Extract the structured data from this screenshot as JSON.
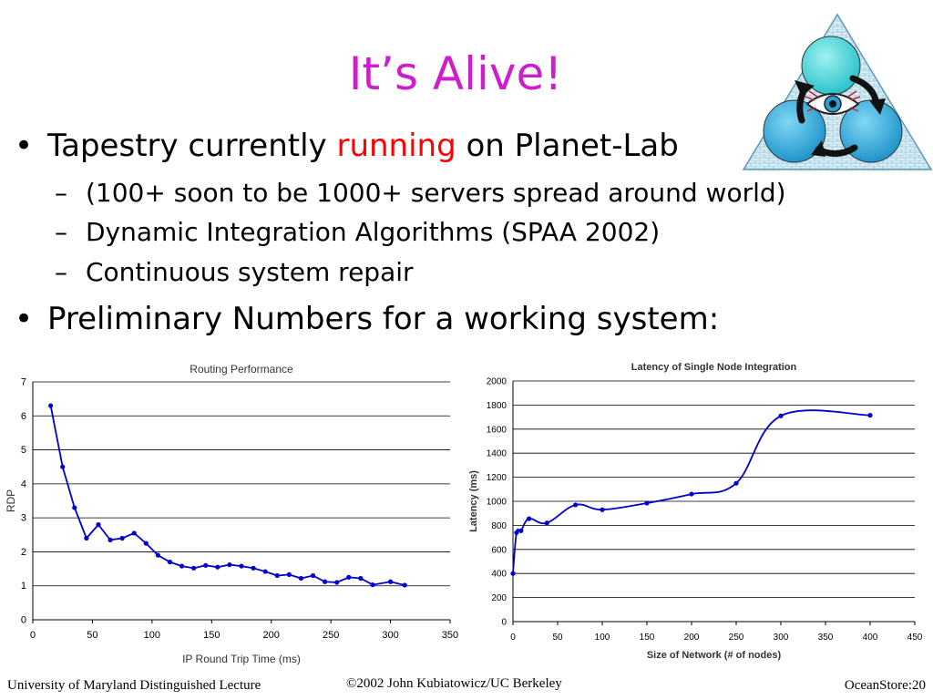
{
  "slide": {
    "title": "It’s Alive!",
    "bullets": [
      {
        "pre": "Tapestry currently ",
        "highlight": "running",
        "post": " on Planet-Lab"
      },
      {
        "text": "Preliminary Numbers for a working system:"
      }
    ],
    "subbullets": [
      "(100+ soon to be 1000+ servers spread around world)",
      "Dynamic Integration Algorithms (SPAA 2002)",
      "Continuous system repair"
    ],
    "bullet_glyph": "•",
    "dash_glyph": "–"
  },
  "colors": {
    "title": "#cc1fcc",
    "highlight": "#ff0000",
    "series": "#0000cc",
    "logo_circle": "#2a9fd6",
    "logo_top_circle": "#3ad0d0"
  },
  "logo": {
    "icon": "eye-triangle-logo"
  },
  "footer": {
    "left": "University of Maryland Distinguished Lecture",
    "center": "©2002 John Kubiatowicz/UC Berkeley",
    "right": "OceanStore:20"
  },
  "chart_data": [
    {
      "type": "line",
      "title": "Routing Performance",
      "xlabel": "IP Round Trip Time (ms)",
      "ylabel": "RDP",
      "xlim": [
        0,
        350
      ],
      "ylim": [
        0,
        7
      ],
      "xticks": [
        0,
        50,
        100,
        150,
        200,
        250,
        300,
        350
      ],
      "yticks": [
        0,
        1,
        2,
        3,
        4,
        5,
        6,
        7
      ],
      "grid": "horizontal",
      "smooth": false,
      "series": [
        {
          "x": [
            15,
            25,
            35,
            45,
            55,
            65,
            75,
            85,
            95,
            105,
            115,
            125,
            135,
            145,
            155,
            165,
            175,
            185,
            195,
            205,
            215,
            225,
            235,
            245,
            255,
            265,
            275,
            285,
            300,
            312
          ],
          "y": [
            6.3,
            4.5,
            3.3,
            2.4,
            2.8,
            2.35,
            2.4,
            2.55,
            2.25,
            1.9,
            1.7,
            1.58,
            1.52,
            1.6,
            1.55,
            1.62,
            1.58,
            1.52,
            1.42,
            1.3,
            1.33,
            1.22,
            1.3,
            1.12,
            1.1,
            1.25,
            1.22,
            1.03,
            1.12,
            1.02
          ]
        }
      ]
    },
    {
      "type": "line",
      "title": "Latency of Single Node Integration",
      "xlabel": "Size of Network (# of nodes)",
      "ylabel": "Latency (ms)",
      "xlim": [
        0,
        450
      ],
      "ylim": [
        0,
        2000
      ],
      "xticks": [
        0,
        50,
        100,
        150,
        200,
        250,
        300,
        350,
        400,
        450
      ],
      "yticks": [
        0,
        200,
        400,
        600,
        800,
        1000,
        1200,
        1400,
        1600,
        1800,
        2000
      ],
      "grid": "horizontal",
      "smooth": true,
      "series": [
        {
          "x": [
            0,
            4,
            9,
            18,
            38,
            70,
            100,
            150,
            200,
            250,
            300,
            400
          ],
          "y": [
            400,
            740,
            755,
            855,
            820,
            970,
            930,
            985,
            1060,
            1150,
            1710,
            1715
          ]
        }
      ]
    }
  ]
}
